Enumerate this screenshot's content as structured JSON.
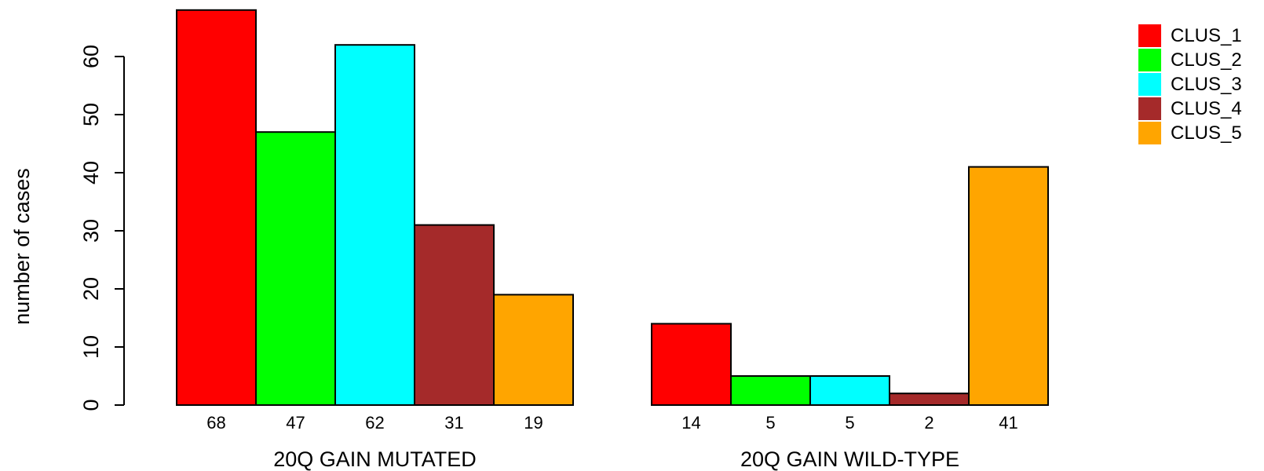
{
  "chart_data": {
    "type": "bar",
    "ylabel": "number of cases",
    "ylim": [
      0,
      68
    ],
    "yticks": [
      0,
      10,
      20,
      30,
      40,
      50,
      60
    ],
    "grid": false,
    "legend_position": "top-right",
    "groups": [
      "20Q GAIN MUTATED",
      "20Q GAIN WILD-TYPE"
    ],
    "series": [
      {
        "name": "CLUS_1",
        "color": "#FF0000",
        "values": [
          68,
          14
        ]
      },
      {
        "name": "CLUS_2",
        "color": "#00FF00",
        "values": [
          47,
          5
        ]
      },
      {
        "name": "CLUS_3",
        "color": "#00FFFF",
        "values": [
          62,
          5
        ]
      },
      {
        "name": "CLUS_4",
        "color": "#A52A2A",
        "values": [
          31,
          2
        ]
      },
      {
        "name": "CLUS_5",
        "color": "#FFA500",
        "values": [
          19,
          41
        ]
      }
    ]
  }
}
